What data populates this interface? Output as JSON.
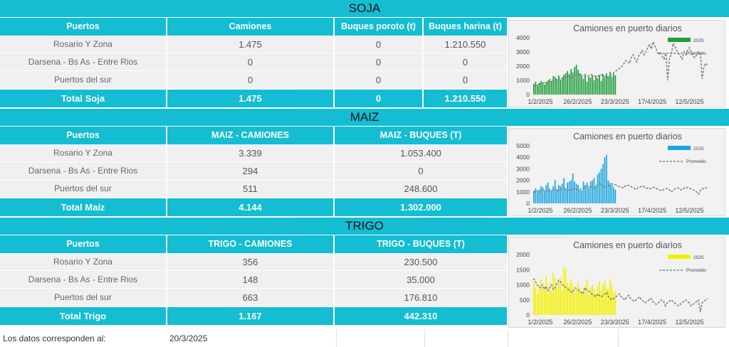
{
  "soja": {
    "title": "SOJA",
    "headers": [
      "Puertos",
      "Camiones",
      "Buques poroto (t)",
      "Buques harina (t)"
    ],
    "rows": [
      [
        "Rosario Y Zona",
        "1.475",
        "0",
        "1.210.550"
      ],
      [
        "Darsena - Bs As - Entre Rios",
        "0",
        "0",
        "0"
      ],
      [
        "Puertos del sur",
        "0",
        "0",
        "0"
      ]
    ],
    "total": [
      "Total Soja",
      "1.475",
      "0",
      "1.210.550"
    ]
  },
  "maiz": {
    "title": "MAIZ",
    "headers": [
      "Puertos",
      "MAIZ - CAMIONES",
      "MAIZ - BUQUES (T)"
    ],
    "rows": [
      [
        "Rosario Y Zona",
        "3.339",
        "1.053.400"
      ],
      [
        "Darsena - Bs As - Entre Rios",
        "294",
        "0"
      ],
      [
        "Puertos del sur",
        "511",
        "248.600"
      ]
    ],
    "total": [
      "Total Maíz",
      "4.144",
      "1.302.000"
    ]
  },
  "trigo": {
    "title": "TRIGO",
    "headers": [
      "Puertos",
      "TRIGO - CAMIONES",
      "TRIGO - BUQUES (T)"
    ],
    "rows": [
      [
        "Rosario Y Zona",
        "356",
        "230.500"
      ],
      [
        "Darsena - Bs As - Entre Rios",
        "148",
        "35.000"
      ],
      [
        "Puertos del sur",
        "663",
        "176.810"
      ]
    ],
    "total": [
      "Total Trigo",
      "1.167",
      "442.310"
    ]
  },
  "footer": {
    "label": "Los datos corresponden al:",
    "date": "20/3/2025"
  },
  "colors": {
    "band": "#14bdd2",
    "soja_bar": "#1f9e3a",
    "maiz_bar": "#1aa7e0",
    "trigo_bar": "#f5f000",
    "promedio": "#7f7f7f"
  },
  "chart_data": [
    {
      "type": "bar",
      "title": "Camiones en puerto diarios",
      "legend": [
        "2025",
        "Promedio"
      ],
      "legend_placement": "top-right",
      "x_ticks": [
        "1/2/2025",
        "26/2/2025",
        "23/3/2025",
        "17/4/2025",
        "12/5/2025"
      ],
      "y_ticks": [
        0,
        1000,
        2000,
        3000,
        4000
      ],
      "ylim": [
        0,
        4000
      ],
      "series": [
        {
          "name": "2025",
          "type": "bar",
          "values": [
            750,
            900,
            600,
            800,
            950,
            850,
            700,
            900,
            1000,
            1100,
            950,
            1300,
            1250,
            1100,
            1350,
            1050,
            1200,
            1400,
            1500,
            1650,
            1450,
            1800,
            1550,
            1950,
            2100,
            1750,
            1500,
            1300,
            1100,
            1450,
            900,
            1250,
            1200,
            1350,
            1000,
            1300,
            1150,
            1400,
            950,
            1450,
            1200,
            1500,
            1300,
            1600,
            1250,
            1450,
            1350
          ]
        },
        {
          "name": "Promedio",
          "type": "line",
          "values": [
            500,
            600,
            650,
            700,
            750,
            800,
            850,
            800,
            750,
            900,
            950,
            1000,
            1050,
            1000,
            1100,
            1150,
            1100,
            1200,
            1250,
            1300,
            1250,
            1200,
            1300,
            1350,
            1400,
            1450,
            1400,
            1350,
            1300,
            1250,
            1300,
            1350,
            1400,
            1350,
            1300,
            1250,
            1300,
            1350,
            1400,
            1300,
            1250,
            1200,
            1300,
            1400,
            1500,
            1600,
            1700,
            1800,
            1900,
            2000,
            2200,
            2400,
            2300,
            2200,
            2600,
            2800,
            2500,
            2300,
            2700,
            2900,
            3100,
            2800,
            3000,
            3300,
            3500,
            3200,
            3700,
            3400,
            3100,
            2800,
            3000,
            2700,
            2500,
            2900,
            1000,
            2600,
            2800,
            3600,
            3400,
            3100,
            2900,
            2700,
            2500,
            3000,
            2800,
            3100,
            3300,
            3000,
            2700,
            2600,
            2800,
            3000,
            2900,
            1100,
            2000,
            2200,
            2000
          ]
        }
      ]
    },
    {
      "type": "bar",
      "title": "Camiones en puerto diarios",
      "legend": [
        "2025",
        "Promedio"
      ],
      "legend_placement": "top-right",
      "x_ticks": [
        "1/2/2025",
        "26/2/2025",
        "23/3/2025",
        "17/4/2025",
        "12/5/2025"
      ],
      "y_ticks": [
        0,
        1000,
        2000,
        3000,
        4000,
        5000
      ],
      "ylim": [
        0,
        5000
      ],
      "series": [
        {
          "name": "2025",
          "type": "bar",
          "values": [
            1100,
            1300,
            1000,
            1200,
            1500,
            1400,
            1100,
            1600,
            1800,
            1300,
            1100,
            1500,
            2000,
            1200,
            1600,
            1500,
            1700,
            2200,
            1300,
            1800,
            1900,
            2000,
            2600,
            1900,
            1700,
            1600,
            1200,
            1100,
            1900,
            1600,
            1800,
            1400,
            1900,
            2000,
            2200,
            1500,
            2500,
            2700,
            3000,
            3400,
            4000,
            4200,
            2000,
            1800,
            1600,
            1400,
            1200
          ]
        },
        {
          "name": "Promedio",
          "type": "line",
          "values": [
            900,
            1000,
            1100,
            950,
            1000,
            1150,
            1200,
            1100,
            1000,
            1050,
            1100,
            1200,
            1300,
            1150,
            1100,
            1200,
            1250,
            1300,
            1200,
            1150,
            1100,
            1200,
            1300,
            1250,
            1200,
            1150,
            1250,
            1300,
            1350,
            1400,
            1500,
            1450,
            1400,
            1350,
            1500,
            1600,
            1700,
            1650,
            1500,
            1400,
            1450,
            1500,
            1600,
            1700,
            1650,
            1600,
            1500,
            1450,
            1400,
            1350,
            1500,
            1600,
            1550,
            1500,
            1400,
            1300,
            1200,
            1350,
            1400,
            1500,
            1450,
            1400,
            1300,
            1250,
            1300,
            1350,
            1400,
            1300,
            1200,
            1150,
            1100,
            1200,
            1250,
            1300,
            1200,
            1000,
            1100,
            1250,
            1300,
            1350,
            1200,
            1150,
            1300,
            1400,
            1350,
            1300,
            1250,
            1200,
            1100,
            1000,
            800,
            1100,
            1300,
            1250,
            1350,
            1400
          ]
        }
      ]
    },
    {
      "type": "bar",
      "title": "Camiones en puerto diarios",
      "legend": [
        "2025",
        "Promedio"
      ],
      "legend_placement": "top-right",
      "x_ticks": [
        "1/2/2025",
        "26/2/2025",
        "23/3/2025",
        "17/4/2025",
        "12/5/2025"
      ],
      "y_ticks": [
        0,
        500,
        1000,
        1500,
        2000
      ],
      "ylim": [
        0,
        2000
      ],
      "series": [
        {
          "name": "2025",
          "type": "bar",
          "values": [
            1100,
            900,
            700,
            1000,
            1200,
            850,
            950,
            1300,
            700,
            1050,
            800,
            1400,
            1200,
            900,
            1100,
            1250,
            800,
            1600,
            1500,
            1050,
            950,
            1200,
            1000,
            750,
            850,
            1100,
            900,
            700,
            800,
            950,
            1200,
            650,
            900,
            1000,
            850,
            700,
            950,
            1100,
            800,
            1000,
            1150,
            900,
            850,
            1200,
            1000,
            700,
            800
          ]
        },
        {
          "name": "Promedio",
          "type": "line",
          "values": [
            1200,
            1150,
            1000,
            950,
            900,
            1000,
            850,
            950,
            800,
            900,
            1000,
            850,
            900,
            1050,
            1150,
            1100,
            1000,
            950,
            900,
            850,
            800,
            750,
            800,
            900,
            850,
            800,
            750,
            700,
            900,
            850,
            800,
            750,
            700,
            650,
            600,
            700,
            650,
            600,
            650,
            700,
            750,
            600,
            550,
            500,
            550,
            600,
            650,
            700,
            600,
            550,
            500,
            600,
            650,
            550,
            500,
            450,
            500,
            550,
            600,
            500,
            450,
            400,
            450,
            500,
            550,
            450,
            400,
            350,
            400,
            450,
            500,
            450,
            300,
            400,
            450,
            500,
            450,
            400,
            350,
            300,
            350,
            400,
            450,
            500,
            450,
            400,
            300,
            350,
            400,
            450,
            500,
            100,
            400,
            450,
            500,
            550
          ]
        }
      ]
    }
  ]
}
